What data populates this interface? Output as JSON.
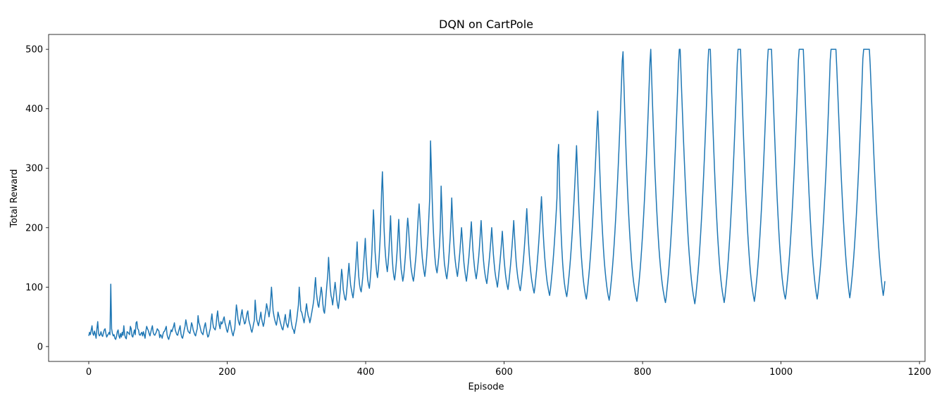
{
  "chart_data": {
    "type": "line",
    "title": "DQN on CartPole",
    "xlabel": "Episode",
    "ylabel": "Total Reward",
    "xlim": [
      -58,
      1208
    ],
    "ylim": [
      -25,
      525
    ],
    "xticks": [
      0,
      200,
      400,
      600,
      800,
      1000,
      1200
    ],
    "yticks": [
      0,
      100,
      200,
      300,
      400,
      500
    ],
    "grid": false,
    "legend": "none",
    "series_color": "#1f77b4",
    "series": [
      {
        "x_start": 0,
        "x_end": 1150,
        "values": [
          18,
          24,
          20,
          28,
          35,
          22,
          19,
          26,
          21,
          14,
          30,
          42,
          22,
          18,
          20,
          25,
          19,
          17,
          23,
          28,
          30,
          22,
          16,
          19,
          21,
          24,
          20,
          105,
          30,
          22,
          18,
          20,
          14,
          12,
          17,
          25,
          28,
          18,
          14,
          22,
          16,
          24,
          19,
          35,
          20,
          15,
          13,
          25,
          24,
          22,
          20,
          34,
          30,
          18,
          16,
          22,
          28,
          20,
          40,
          42,
          30,
          28,
          20,
          19,
          22,
          24,
          18,
          25,
          20,
          14,
          26,
          34,
          30,
          27,
          22,
          18,
          24,
          30,
          35,
          24,
          20,
          19,
          22,
          25,
          30,
          28,
          26,
          15,
          20,
          18,
          14,
          21,
          25,
          26,
          30,
          34,
          20,
          15,
          12,
          17,
          22,
          28,
          25,
          30,
          34,
          40,
          28,
          24,
          20,
          19,
          25,
          30,
          35,
          22,
          16,
          14,
          20,
          28,
          34,
          45,
          38,
          30,
          25,
          24,
          22,
          30,
          40,
          36,
          28,
          24,
          20,
          18,
          25,
          30,
          52,
          40,
          36,
          30,
          24,
          22,
          20,
          28,
          35,
          40,
          30,
          22,
          16,
          18,
          25,
          30,
          45,
          55,
          40,
          32,
          30,
          28,
          35,
          50,
          60,
          45,
          36,
          30,
          42,
          38,
          40,
          46,
          50,
          40,
          35,
          28,
          24,
          30,
          38,
          44,
          36,
          28,
          22,
          18,
          25,
          30,
          50,
          70,
          60,
          46,
          40,
          36,
          45,
          55,
          62,
          50,
          45,
          38,
          40,
          48,
          56,
          60,
          46,
          40,
          35,
          28,
          24,
          30,
          38,
          44,
          78,
          60,
          45,
          40,
          35,
          42,
          50,
          58,
          46,
          40,
          34,
          40,
          52,
          60,
          72,
          65,
          58,
          50,
          60,
          78,
          100,
          80,
          60,
          52,
          45,
          40,
          36,
          44,
          58,
          52,
          46,
          40,
          35,
          30,
          28,
          36,
          46,
          54,
          40,
          36,
          32,
          40,
          50,
          62,
          44,
          36,
          30,
          28,
          22,
          30,
          38,
          46,
          58,
          70,
          100,
          80,
          60,
          58,
          52,
          46,
          40,
          50,
          62,
          72,
          60,
          52,
          48,
          40,
          46,
          54,
          62,
          70,
          80,
          100,
          116,
          92,
          80,
          70,
          66,
          78,
          88,
          100,
          90,
          72,
          60,
          56,
          70,
          88,
          105,
          120,
          150,
          125,
          100,
          86,
          80,
          70,
          82,
          96,
          108,
          95,
          80,
          70,
          64,
          76,
          90,
          110,
          130,
          118,
          96,
          88,
          80,
          78,
          90,
          106,
          124,
          140,
          120,
          104,
          96,
          88,
          82,
          94,
          110,
          128,
          150,
          176,
          140,
          118,
          104,
          96,
          92,
          104,
          118,
          140,
          160,
          182,
          150,
          130,
          112,
          104,
          98,
          112,
          130,
          156,
          190,
          230,
          200,
          160,
          140,
          124,
          116,
          130,
          150,
          176,
          210,
          260,
          294,
          250,
          200,
          170,
          150,
          136,
          126,
          140,
          160,
          190,
          220,
          180,
          150,
          130,
          118,
          112,
          124,
          140,
          160,
          186,
          214,
          180,
          150,
          130,
          120,
          110,
          118,
          132,
          150,
          170,
          196,
          216,
          200,
          176,
          150,
          134,
          124,
          116,
          110,
          120,
          136,
          150,
          170,
          196,
          220,
          240,
          216,
          190,
          166,
          148,
          136,
          126,
          118,
          130,
          146,
          166,
          190,
          220,
          250,
          346,
          300,
          250,
          210,
          180,
          156,
          140,
          130,
          124,
          136,
          150,
          170,
          200,
          270,
          230,
          190,
          160,
          140,
          130,
          120,
          114,
          126,
          140,
          160,
          182,
          210,
          250,
          216,
          186,
          164,
          148,
          136,
          126,
          118,
          130,
          144,
          160,
          180,
          200,
          180,
          158,
          140,
          128,
          118,
          110,
          122,
          136,
          150,
          168,
          188,
          210,
          186,
          162,
          146,
          132,
          122,
          114,
          124,
          136,
          150,
          168,
          190,
          212,
          186,
          162,
          144,
          130,
          120,
          112,
          106,
          118,
          132,
          146,
          162,
          180,
          200,
          178,
          156,
          140,
          126,
          116,
          108,
          100,
          112,
          126,
          140,
          156,
          174,
          194,
          172,
          150,
          134,
          120,
          110,
          102,
          96,
          108,
          122,
          136,
          152,
          170,
          190,
          212,
          186,
          162,
          142,
          128,
          116,
          108,
          100,
          94,
          104,
          118,
          132,
          148,
          166,
          186,
          208,
          232,
          204,
          178,
          156,
          138,
          124,
          112,
          104,
          96,
          90,
          100,
          114,
          128,
          144,
          162,
          182,
          204,
          228,
          252,
          222,
          194,
          170,
          150,
          134,
          120,
          108,
          100,
          92,
          86,
          96,
          110,
          124,
          140,
          158,
          178,
          200,
          224,
          250,
          320,
          340,
          280,
          232,
          194,
          164,
          140,
          122,
          108,
          98,
          90,
          84,
          94,
          108,
          122,
          138,
          156,
          176,
          198,
          222,
          248,
          276,
          306,
          338,
          300,
          262,
          228,
          198,
          172,
          150,
          132,
          116,
          104,
          94,
          86,
          80,
          90,
          104,
          118,
          134,
          152,
          172,
          194,
          218,
          244,
          272,
          302,
          334,
          368,
          396,
          356,
          316,
          278,
          244,
          214,
          188,
          164,
          144,
          128,
          114,
          102,
          92,
          84,
          78,
          88,
          102,
          116,
          132,
          150,
          170,
          192,
          216,
          242,
          270,
          300,
          332,
          366,
          402,
          440,
          480,
          496,
          446,
          400,
          356,
          316,
          280,
          248,
          220,
          194,
          172,
          152,
          134,
          120,
          108,
          98,
          90,
          82,
          76,
          86,
          100,
          114,
          130,
          148,
          168,
          190,
          214,
          240,
          268,
          298,
          330,
          364,
          400,
          438,
          478,
          500,
          456,
          414,
          374,
          336,
          300,
          268,
          238,
          212,
          188,
          166,
          148,
          132,
          118,
          106,
          96,
          88,
          80,
          74,
          84,
          98,
          112,
          128,
          146,
          166,
          188,
          212,
          238,
          266,
          296,
          328,
          362,
          398,
          436,
          476,
          500,
          500,
          462,
          424,
          388,
          352,
          318,
          286,
          256,
          228,
          202,
          178,
          158,
          140,
          124,
          110,
          98,
          88,
          80,
          72,
          82,
          96,
          110,
          126,
          144,
          164,
          186,
          210,
          236,
          264,
          294,
          326,
          360,
          396,
          434,
          474,
          500,
          500,
          500,
          458,
          418,
          378,
          340,
          304,
          270,
          240,
          212,
          186,
          164,
          144,
          126,
          112,
          100,
          90,
          82,
          74,
          84,
          98,
          112,
          128,
          146,
          166,
          188,
          212,
          238,
          266,
          296,
          328,
          362,
          398,
          436,
          476,
          500,
          500,
          500,
          500,
          460,
          420,
          380,
          342,
          306,
          272,
          242,
          214,
          188,
          166,
          146,
          128,
          114,
          102,
          92,
          84,
          76,
          86,
          100,
          114,
          130,
          148,
          168,
          190,
          214,
          240,
          268,
          298,
          330,
          364,
          400,
          438,
          478,
          500,
          500,
          500,
          500,
          500,
          462,
          424,
          386,
          350,
          314,
          280,
          248,
          220,
          194,
          170,
          150,
          132,
          116,
          104,
          94,
          86,
          80,
          90,
          104,
          118,
          134,
          152,
          172,
          194,
          218,
          244,
          272,
          302,
          334,
          368,
          404,
          442,
          482,
          500,
          500,
          500,
          500,
          500,
          500,
          466,
          430,
          394,
          358,
          324,
          290,
          258,
          230,
          204,
          180,
          158,
          140,
          124,
          110,
          98,
          88,
          80,
          90,
          104,
          118,
          134,
          152,
          172,
          194,
          218,
          244,
          272,
          302,
          334,
          368,
          404,
          442,
          482,
          500,
          500,
          500,
          500,
          500,
          500,
          500,
          470,
          436,
          402,
          368,
          334,
          302,
          272,
          244,
          218,
          194,
          172,
          152,
          134,
          118,
          104,
          92,
          82,
          92,
          106,
          120,
          136,
          154,
          174,
          196,
          220,
          246,
          274,
          304,
          336,
          370,
          406,
          444,
          484,
          500,
          500,
          500,
          500,
          500,
          500,
          500,
          500,
          474,
          440,
          406,
          372,
          338,
          306,
          276,
          248,
          222,
          198,
          176,
          156,
          138,
          122,
          108,
          96,
          86,
          96,
          110
        ]
      }
    ]
  }
}
